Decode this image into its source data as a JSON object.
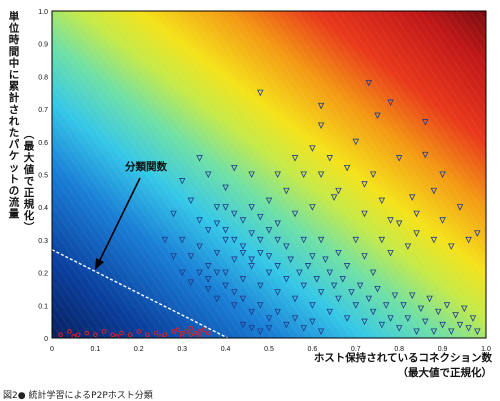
{
  "chart_data": {
    "type": "scatter",
    "xlim": [
      0,
      1.0
    ],
    "ylim": [
      0,
      1.0
    ],
    "x_ticks": [
      "0",
      "0.1",
      "0.2",
      "0.3",
      "0.4",
      "0.5",
      "0.6",
      "0.7",
      "0.8",
      "0.9",
      "1.0"
    ],
    "y_ticks": [
      "0",
      "0.1",
      "0.2",
      "0.3",
      "0.4",
      "0.5",
      "0.6",
      "0.7",
      "0.8",
      "0.9",
      "1.0"
    ],
    "xlabel_lines": [
      "ホスト保持されているコネクション数",
      "（最大値で正規化）"
    ],
    "ylabel_lines": [
      "単位時間中に累計されたパケットの流量",
      "（最大値で正規化）"
    ],
    "annotation": "分類関数",
    "classifier_line": {
      "from": [
        0,
        0.27
      ],
      "to": [
        0.405,
        0
      ]
    },
    "background": "gradient: value increases toward the top-right (dark blue → cyan → green → yellow → orange → red → dark red)",
    "grid": false,
    "series": [
      {
        "marker": "circle",
        "color": "#e02020",
        "points": [
          [
            0.02,
            0.01
          ],
          [
            0.04,
            0.02
          ],
          [
            0.06,
            0.01
          ],
          [
            0.08,
            0.015
          ],
          [
            0.1,
            0.01
          ],
          [
            0.12,
            0.02
          ],
          [
            0.14,
            0.01
          ],
          [
            0.16,
            0.015
          ],
          [
            0.18,
            0.01
          ],
          [
            0.2,
            0.02
          ],
          [
            0.22,
            0.01
          ],
          [
            0.24,
            0.015
          ],
          [
            0.26,
            0.01
          ],
          [
            0.28,
            0.02
          ],
          [
            0.29,
            0.025
          ],
          [
            0.3,
            0.015
          ],
          [
            0.31,
            0.02
          ],
          [
            0.32,
            0.03
          ],
          [
            0.33,
            0.015
          ],
          [
            0.34,
            0.02
          ],
          [
            0.35,
            0.025
          ],
          [
            0.36,
            0.015
          ],
          [
            0.3,
            0.005
          ],
          [
            0.32,
            0.01
          ],
          [
            0.34,
            0.005
          ],
          [
            0.05,
            0.005
          ],
          [
            0.15,
            0.005
          ],
          [
            0.25,
            0.005
          ]
        ]
      },
      {
        "marker": "triangle-down",
        "color": "#1f3a8a",
        "points": [
          [
            0.48,
            0.75
          ],
          [
            0.62,
            0.71
          ],
          [
            0.62,
            0.65
          ],
          [
            0.73,
            0.78
          ],
          [
            0.75,
            0.68
          ],
          [
            0.78,
            0.72
          ],
          [
            0.8,
            0.55
          ],
          [
            0.86,
            0.66
          ],
          [
            0.86,
            0.56
          ],
          [
            0.9,
            0.5
          ],
          [
            0.88,
            0.45
          ],
          [
            0.83,
            0.43
          ],
          [
            0.7,
            0.6
          ],
          [
            0.68,
            0.52
          ],
          [
            0.72,
            0.47
          ],
          [
            0.65,
            0.43
          ],
          [
            0.6,
            0.4
          ],
          [
            0.56,
            0.38
          ],
          [
            0.52,
            0.35
          ],
          [
            0.5,
            0.42
          ],
          [
            0.46,
            0.5
          ],
          [
            0.42,
            0.52
          ],
          [
            0.4,
            0.46
          ],
          [
            0.36,
            0.5
          ],
          [
            0.34,
            0.55
          ],
          [
            0.3,
            0.48
          ],
          [
            0.32,
            0.42
          ],
          [
            0.28,
            0.38
          ],
          [
            0.34,
            0.36
          ],
          [
            0.38,
            0.35
          ],
          [
            0.4,
            0.3
          ],
          [
            0.44,
            0.28
          ],
          [
            0.46,
            0.32
          ],
          [
            0.48,
            0.3
          ],
          [
            0.5,
            0.25
          ],
          [
            0.52,
            0.22
          ],
          [
            0.54,
            0.28
          ],
          [
            0.58,
            0.3
          ],
          [
            0.6,
            0.25
          ],
          [
            0.62,
            0.3
          ],
          [
            0.64,
            0.2
          ],
          [
            0.66,
            0.26
          ],
          [
            0.68,
            0.22
          ],
          [
            0.7,
            0.3
          ],
          [
            0.72,
            0.25
          ],
          [
            0.74,
            0.2
          ],
          [
            0.76,
            0.3
          ],
          [
            0.78,
            0.26
          ],
          [
            0.8,
            0.35
          ],
          [
            0.82,
            0.28
          ],
          [
            0.84,
            0.32
          ],
          [
            0.88,
            0.3
          ],
          [
            0.92,
            0.28
          ],
          [
            0.96,
            0.3
          ],
          [
            0.98,
            0.32
          ],
          [
            0.3,
            0.3
          ],
          [
            0.32,
            0.25
          ],
          [
            0.34,
            0.28
          ],
          [
            0.36,
            0.22
          ],
          [
            0.38,
            0.26
          ],
          [
            0.4,
            0.2
          ],
          [
            0.42,
            0.24
          ],
          [
            0.44,
            0.18
          ],
          [
            0.46,
            0.22
          ],
          [
            0.48,
            0.16
          ],
          [
            0.5,
            0.2
          ],
          [
            0.52,
            0.14
          ],
          [
            0.54,
            0.18
          ],
          [
            0.56,
            0.12
          ],
          [
            0.58,
            0.16
          ],
          [
            0.6,
            0.1
          ],
          [
            0.62,
            0.14
          ],
          [
            0.64,
            0.08
          ],
          [
            0.66,
            0.12
          ],
          [
            0.68,
            0.06
          ],
          [
            0.7,
            0.1
          ],
          [
            0.72,
            0.05
          ],
          [
            0.74,
            0.08
          ],
          [
            0.76,
            0.04
          ],
          [
            0.78,
            0.06
          ],
          [
            0.8,
            0.03
          ],
          [
            0.82,
            0.06
          ],
          [
            0.84,
            0.02
          ],
          [
            0.86,
            0.05
          ],
          [
            0.88,
            0.02
          ],
          [
            0.9,
            0.04
          ],
          [
            0.92,
            0.02
          ],
          [
            0.94,
            0.04
          ],
          [
            0.96,
            0.03
          ],
          [
            0.98,
            0.02
          ],
          [
            0.42,
            0.1
          ],
          [
            0.44,
            0.12
          ],
          [
            0.46,
            0.08
          ],
          [
            0.48,
            0.1
          ],
          [
            0.5,
            0.06
          ],
          [
            0.52,
            0.08
          ],
          [
            0.54,
            0.04
          ],
          [
            0.56,
            0.06
          ],
          [
            0.58,
            0.03
          ],
          [
            0.6,
            0.05
          ],
          [
            0.62,
            0.02
          ],
          [
            0.44,
            0.04
          ],
          [
            0.46,
            0.03
          ],
          [
            0.48,
            0.02
          ],
          [
            0.5,
            0.03
          ],
          [
            0.36,
            0.15
          ],
          [
            0.38,
            0.12
          ],
          [
            0.4,
            0.16
          ],
          [
            0.42,
            0.14
          ],
          [
            0.34,
            0.2
          ],
          [
            0.36,
            0.18
          ],
          [
            0.38,
            0.2
          ],
          [
            0.3,
            0.2
          ],
          [
            0.32,
            0.17
          ],
          [
            0.28,
            0.25
          ],
          [
            0.26,
            0.3
          ],
          [
            0.4,
            0.4
          ],
          [
            0.42,
            0.38
          ],
          [
            0.44,
            0.36
          ],
          [
            0.46,
            0.4
          ],
          [
            0.48,
            0.37
          ],
          [
            0.5,
            0.33
          ],
          [
            0.52,
            0.3
          ],
          [
            0.36,
            0.33
          ],
          [
            0.38,
            0.4
          ],
          [
            0.4,
            0.33
          ],
          [
            0.42,
            0.3
          ],
          [
            0.44,
            0.26
          ],
          [
            0.46,
            0.24
          ],
          [
            0.48,
            0.26
          ],
          [
            0.55,
            0.24
          ],
          [
            0.57,
            0.2
          ],
          [
            0.59,
            0.22
          ],
          [
            0.61,
            0.18
          ],
          [
            0.63,
            0.24
          ],
          [
            0.65,
            0.16
          ],
          [
            0.67,
            0.18
          ],
          [
            0.69,
            0.14
          ],
          [
            0.71,
            0.16
          ],
          [
            0.73,
            0.12
          ],
          [
            0.75,
            0.15
          ],
          [
            0.77,
            0.1
          ],
          [
            0.79,
            0.13
          ],
          [
            0.81,
            0.1
          ],
          [
            0.83,
            0.13
          ],
          [
            0.85,
            0.09
          ],
          [
            0.87,
            0.12
          ],
          [
            0.89,
            0.08
          ],
          [
            0.91,
            0.1
          ],
          [
            0.93,
            0.07
          ],
          [
            0.95,
            0.09
          ],
          [
            0.97,
            0.06
          ],
          [
            0.62,
            0.5
          ],
          [
            0.66,
            0.45
          ],
          [
            0.58,
            0.5
          ],
          [
            0.54,
            0.45
          ],
          [
            0.52,
            0.5
          ],
          [
            0.56,
            0.55
          ],
          [
            0.6,
            0.58
          ],
          [
            0.64,
            0.55
          ],
          [
            0.74,
            0.5
          ],
          [
            0.76,
            0.42
          ],
          [
            0.72,
            0.38
          ],
          [
            0.78,
            0.36
          ],
          [
            0.84,
            0.38
          ],
          [
            0.9,
            0.36
          ],
          [
            0.94,
            0.4
          ]
        ]
      }
    ]
  },
  "caption": "図2● 統計学習によるP2Pホスト分類",
  "colors": {
    "frame": "#000000",
    "classifier_line": "#ffffff",
    "arrow": "#000000"
  }
}
